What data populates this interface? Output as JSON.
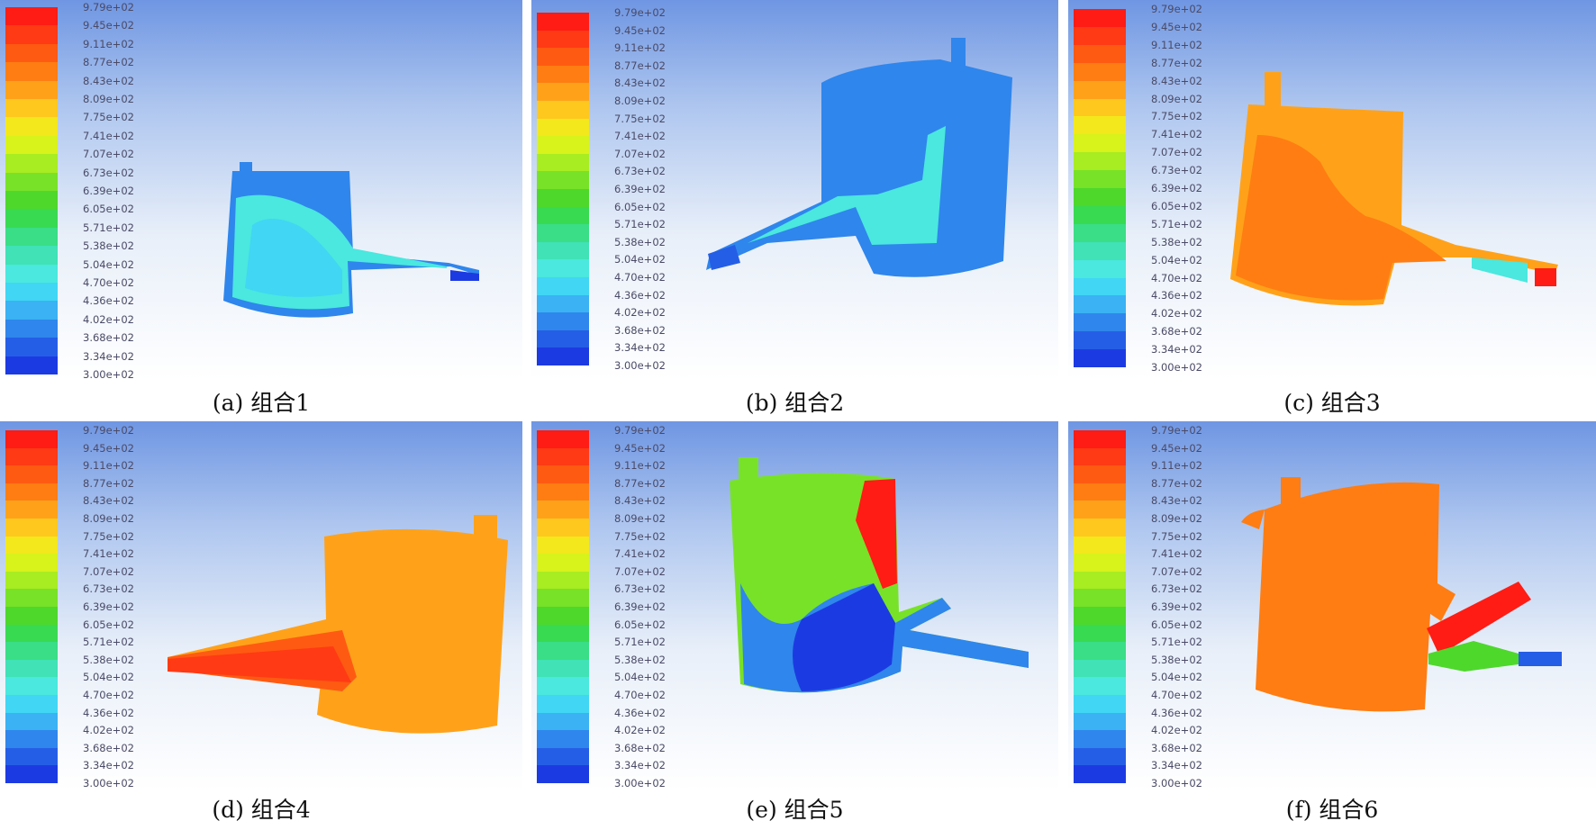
{
  "colorbar": {
    "labels": [
      "9.79e+02",
      "9.45e+02",
      "9.11e+02",
      "8.77e+02",
      "8.43e+02",
      "8.09e+02",
      "7.75e+02",
      "7.41e+02",
      "7.07e+02",
      "6.73e+02",
      "6.39e+02",
      "6.05e+02",
      "5.71e+02",
      "5.38e+02",
      "5.04e+02",
      "4.70e+02",
      "4.36e+02",
      "4.02e+02",
      "3.68e+02",
      "3.34e+02",
      "3.00e+02"
    ],
    "colors": [
      "#ff1c14",
      "#ff3a14",
      "#ff5a12",
      "#ff7d12",
      "#ffa21a",
      "#ffc81e",
      "#f3e81c",
      "#d8f21c",
      "#a8ec22",
      "#78e228",
      "#4ed82c",
      "#38da52",
      "#3ade86",
      "#40e2b6",
      "#4ae8de",
      "#40d6f4",
      "#3ab2f4",
      "#2f86ec",
      "#255ee6",
      "#1c3ae2"
    ]
  },
  "panels": [
    {
      "caption": "(a) 组合1"
    },
    {
      "caption": "(b) 组合2"
    },
    {
      "caption": "(c) 组合3"
    },
    {
      "caption": "(d) 组合4"
    },
    {
      "caption": "(e) 组合5"
    },
    {
      "caption": "(f) 组合6"
    }
  ]
}
